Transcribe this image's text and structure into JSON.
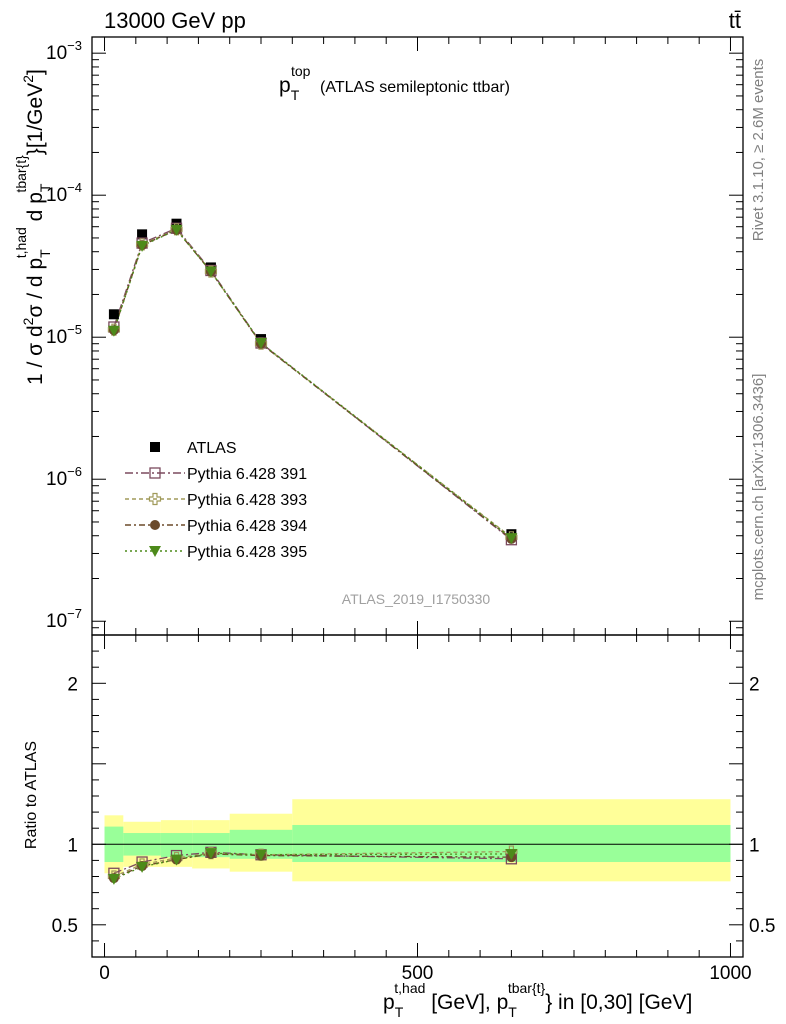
{
  "header": {
    "energy_label": "13000 GeV pp",
    "process_label": "tt̄"
  },
  "side_labels": {
    "rivet": "Rivet 3.1.10, ≥ 2.6M events",
    "mcplots": "mcplots.cern.ch [arXiv:1306.3436]"
  },
  "plot_title": {
    "main": "p",
    "sub": "T",
    "sup": "top",
    "rest": "(ATLAS semileptonic ttbar)"
  },
  "y_axis_label": {
    "a": "1 / σ d",
    "a_sup": "2",
    "b": "σ / d p",
    "b_sub": "T",
    "b_sup": "t,had",
    "c": " d p",
    "c_sub": "T",
    "c_sup": "tbar{t}",
    "d": "}[1/GeV",
    "d_sup": "2",
    "e": "]"
  },
  "x_axis_label": {
    "a": "p",
    "a_sub": "T",
    "a_sup": "t,had",
    "b": " [GeV], p",
    "b_sub": "T",
    "b_sup": "tbar{t}",
    "c": "} in [0,30] [GeV]"
  },
  "ratio_axis_label": "Ratio to ATLAS",
  "analysis_id": "ATLAS_2019_I1750330",
  "legend_entries": [
    "ATLAS",
    "Pythia 6.428 391",
    "Pythia 6.428 393",
    "Pythia 6.428 394",
    "Pythia 6.428 395"
  ],
  "chart_data": [
    {
      "type": "scatter",
      "title": "p_T^top (ATLAS semileptonic ttbar)",
      "xlabel": "p_T^{t,had} [GeV], p_T^{tbar{t}} in [0,30] [GeV]",
      "ylabel": "1 / σ d²σ / d p_T^{t,had} d p_T^{tbar{t}}}[1/GeV²]",
      "xlim": [
        -20,
        1020
      ],
      "ylim": [
        8e-08,
        0.0013
      ],
      "yscale": "log",
      "y_ticks": [
        "10^-7",
        "10^-6",
        "10^-5",
        "10^-4",
        "10^-3"
      ],
      "x": [
        15,
        60,
        115,
        170,
        250,
        650
      ],
      "series": [
        {
          "name": "ATLAS",
          "color": "#000000",
          "marker": "square-filled",
          "values": [
            1.45e-05,
            5.3e-05,
            6.3e-05,
            3.1e-05,
            9.7e-06,
            4.1e-07
          ]
        },
        {
          "name": "Pythia 6.428 391",
          "color": "#7b4a5e",
          "marker": "square-open",
          "values": [
            1.18e-05,
            4.6e-05,
            5.85e-05,
            2.95e-05,
            9.1e-06,
            3.75e-07
          ]
        },
        {
          "name": "Pythia 6.428 393",
          "color": "#a09a5a",
          "marker": "cross-open",
          "values": [
            1.13e-05,
            4.5e-05,
            5.75e-05,
            2.9e-05,
            9e-06,
            3.9e-07
          ]
        },
        {
          "name": "Pythia 6.428 394",
          "color": "#6b4a2a",
          "marker": "circle-filled",
          "values": [
            1.12e-05,
            4.45e-05,
            5.7e-05,
            2.9e-05,
            9e-06,
            3.8e-07
          ]
        },
        {
          "name": "Pythia 6.428 395",
          "color": "#4d8a1a",
          "marker": "triangle-down-filled",
          "values": [
            1.11e-05,
            4.4e-05,
            5.7e-05,
            2.9e-05,
            9.1e-06,
            3.85e-07
          ]
        }
      ]
    },
    {
      "type": "scatter",
      "ylabel": "Ratio to ATLAS",
      "xlabel": "p_T^{t,had} [GeV], p_T^{tbar{t}} in [0,30] [GeV]",
      "xlim": [
        -20,
        1020
      ],
      "ylim": [
        0.3,
        2.3
      ],
      "x_ticks": [
        0,
        500,
        1000
      ],
      "y_ticks": [
        0.5,
        1,
        2
      ],
      "bins": [
        [
          0,
          30
        ],
        [
          30,
          90
        ],
        [
          90,
          140
        ],
        [
          140,
          200
        ],
        [
          200,
          300
        ],
        [
          300,
          1000
        ]
      ],
      "band_inner": [
        [
          0.89,
          1.11
        ],
        [
          0.93,
          1.07
        ],
        [
          0.92,
          1.07
        ],
        [
          0.92,
          1.07
        ],
        [
          0.91,
          1.09
        ],
        [
          0.89,
          1.12
        ]
      ],
      "band_outer": [
        [
          0.82,
          1.18
        ],
        [
          0.86,
          1.14
        ],
        [
          0.86,
          1.15
        ],
        [
          0.85,
          1.15
        ],
        [
          0.83,
          1.19
        ],
        [
          0.77,
          1.28
        ]
      ],
      "x": [
        15,
        60,
        115,
        170,
        250,
        650
      ],
      "series": [
        {
          "name": "Pythia 6.428 391",
          "color": "#7b4a5e",
          "values": [
            0.82,
            0.89,
            0.93,
            0.95,
            0.935,
            0.91
          ]
        },
        {
          "name": "Pythia 6.428 393",
          "color": "#a09a5a",
          "values": [
            0.8,
            0.875,
            0.915,
            0.945,
            0.935,
            0.955
          ]
        },
        {
          "name": "Pythia 6.428 394",
          "color": "#6b4a2a",
          "values": [
            0.79,
            0.865,
            0.905,
            0.94,
            0.93,
            0.92
          ]
        },
        {
          "name": "Pythia 6.428 395",
          "color": "#4d8a1a",
          "values": [
            0.785,
            0.86,
            0.905,
            0.945,
            0.935,
            0.94
          ]
        }
      ]
    }
  ]
}
